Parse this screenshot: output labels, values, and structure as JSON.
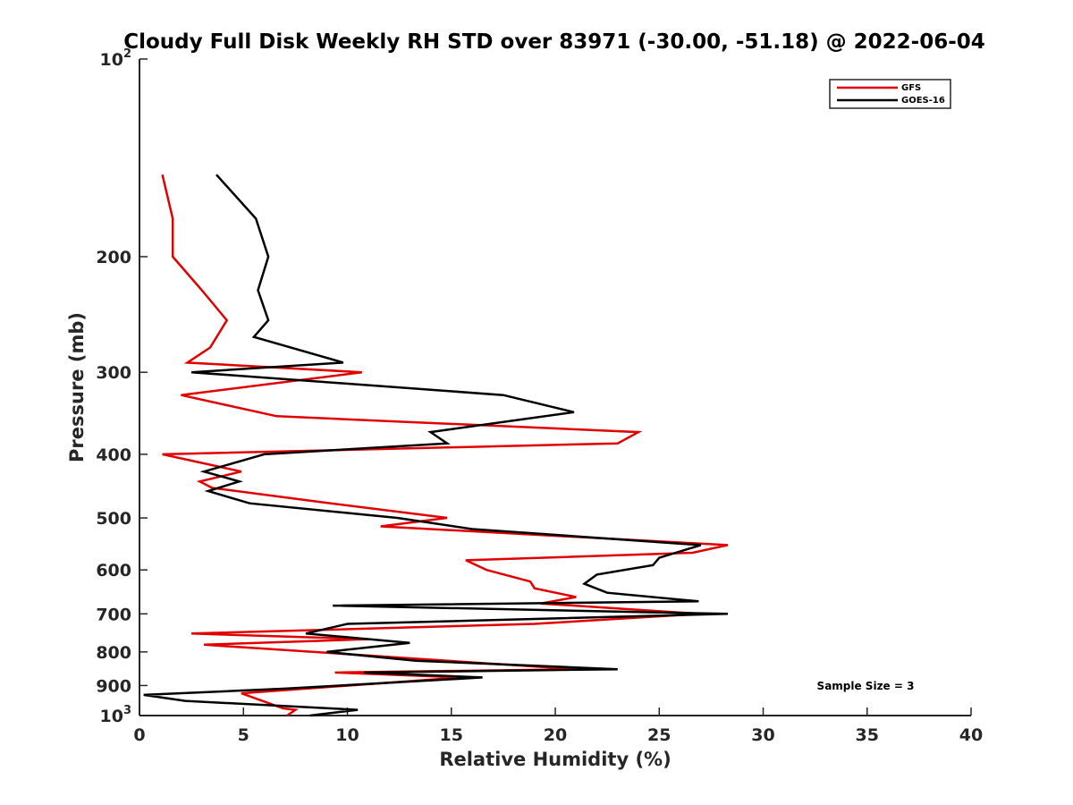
{
  "chart_data": {
    "type": "line",
    "title": "Cloudy Full Disk Weekly RH STD over 83971 (-30.00, -51.18) @ 2022-06-04",
    "xlabel": "Relative Humidity (%)",
    "ylabel": "Pressure (mb)",
    "xlim": [
      0,
      40
    ],
    "ylim": [
      100,
      1000
    ],
    "y_scale": "log",
    "y_reversed": true,
    "grid": false,
    "legend_position": "top-right",
    "x_ticks": [
      0,
      5,
      10,
      15,
      20,
      25,
      30,
      35,
      40
    ],
    "x_tick_labels": [
      "0",
      "5",
      "10",
      "15",
      "20",
      "25",
      "30",
      "35",
      "40"
    ],
    "y_ticks": [
      100,
      200,
      300,
      400,
      500,
      600,
      700,
      800,
      900,
      1000
    ],
    "y_tick_labels": [
      "10^2",
      "200",
      "300",
      "400",
      "500",
      "600",
      "700",
      "800",
      "900",
      "10^3"
    ],
    "annotation": "Sample Size = 3",
    "series": [
      {
        "name": "GFS",
        "color": "#e00000",
        "points": [
          [
            1.1,
            150
          ],
          [
            1.6,
            175
          ],
          [
            1.6,
            200
          ],
          [
            3.0,
            225
          ],
          [
            4.2,
            250
          ],
          [
            3.4,
            275
          ],
          [
            2.3,
            290
          ],
          [
            10.7,
            300
          ],
          [
            2.0,
            325
          ],
          [
            6.6,
            350
          ],
          [
            24.0,
            370
          ],
          [
            23.0,
            385
          ],
          [
            1.1,
            400
          ],
          [
            4.9,
            425
          ],
          [
            2.9,
            440
          ],
          [
            3.5,
            450
          ],
          [
            9.2,
            475
          ],
          [
            14.8,
            500
          ],
          [
            11.6,
            515
          ],
          [
            28.3,
            550
          ],
          [
            26.6,
            565
          ],
          [
            15.7,
            580
          ],
          [
            16.7,
            600
          ],
          [
            18.8,
            625
          ],
          [
            19.0,
            640
          ],
          [
            21.0,
            660
          ],
          [
            19.3,
            675
          ],
          [
            27.0,
            700
          ],
          [
            19.0,
            725
          ],
          [
            2.5,
            750
          ],
          [
            11.0,
            765
          ],
          [
            3.1,
            780
          ],
          [
            21.0,
            850
          ],
          [
            9.4,
            860
          ],
          [
            15.5,
            875
          ],
          [
            4.9,
            925
          ],
          [
            6.9,
            975
          ],
          [
            7.5,
            980
          ],
          [
            7.1,
            1000
          ]
        ]
      },
      {
        "name": "GOES-16",
        "color": "#000000",
        "points": [
          [
            3.7,
            150
          ],
          [
            5.6,
            175
          ],
          [
            6.2,
            200
          ],
          [
            5.7,
            225
          ],
          [
            6.2,
            250
          ],
          [
            5.5,
            265
          ],
          [
            9.8,
            290
          ],
          [
            2.5,
            300
          ],
          [
            17.5,
            325
          ],
          [
            20.9,
            345
          ],
          [
            14.0,
            370
          ],
          [
            14.8,
            385
          ],
          [
            6.0,
            400
          ],
          [
            3.1,
            425
          ],
          [
            4.8,
            440
          ],
          [
            3.3,
            455
          ],
          [
            5.3,
            475
          ],
          [
            12.4,
            500
          ],
          [
            16.0,
            520
          ],
          [
            27.0,
            550
          ],
          [
            25.0,
            575
          ],
          [
            24.7,
            590
          ],
          [
            22.0,
            610
          ],
          [
            21.4,
            630
          ],
          [
            22.5,
            650
          ],
          [
            26.9,
            670
          ],
          [
            9.3,
            680
          ],
          [
            28.3,
            700
          ],
          [
            10.0,
            725
          ],
          [
            8.0,
            750
          ],
          [
            13.0,
            775
          ],
          [
            9.0,
            800
          ],
          [
            13.3,
            825
          ],
          [
            23.0,
            850
          ],
          [
            10.8,
            860
          ],
          [
            16.5,
            875
          ],
          [
            7.0,
            910
          ],
          [
            0.2,
            930
          ],
          [
            2.2,
            950
          ],
          [
            10.5,
            980
          ],
          [
            8.2,
            1000
          ]
        ]
      }
    ]
  }
}
